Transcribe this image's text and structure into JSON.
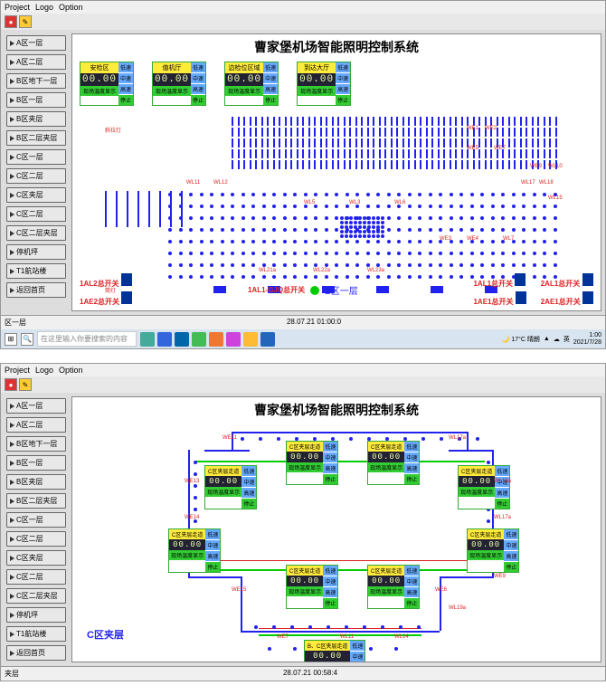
{
  "menu": {
    "project": "Project",
    "logo": "Logo",
    "option": "Option"
  },
  "sys_title": "曹家堡机场智能照明控制系统",
  "nav": [
    "A区一层",
    "A区二层",
    "B区地下一层",
    "B区一层",
    "B区夹层",
    "B区二层夹层",
    "C区一层",
    "C区二层",
    "C区夹层",
    "C区二层",
    "C区二层夹层",
    "停机坪",
    "T1航站楼",
    "返回首页"
  ],
  "top_panels": [
    {
      "title": "安检区",
      "val": "00.00"
    },
    {
      "title": "值机厅",
      "val": "00.00"
    },
    {
      "title": "边检位区域",
      "val": "00.00"
    },
    {
      "title": "到达大厅",
      "val": "00.00"
    }
  ],
  "panel_sub": "现场温度显示",
  "panel_side": [
    "低速",
    "中速",
    "高速",
    "停止"
  ],
  "switches_left": [
    {
      "label": "1AL2总开关"
    },
    {
      "label": "1AE2总开关"
    }
  ],
  "switches_mid": "1AL1-GJQ总开关",
  "switches_right": [
    {
      "label": "1AL1总开关"
    },
    {
      "label": "1AE1总开关"
    },
    {
      "label": "2AL1总开关"
    },
    {
      "label": "2AE1总开关"
    }
  ],
  "zone_b": "B区一层",
  "zone_c": "C区夹层",
  "status_left": "区一层",
  "status_time": "28.07.21 01:00:0",
  "status_time2": "28.07.21 00:58:4",
  "taskbar": {
    "search_ph": "在这里输入你要搜索的内容",
    "weather": "17°C 晴朗",
    "time": "1:00",
    "date": "2021/7/28"
  },
  "c_panels": [
    {
      "title": "C区夹层走道",
      "val": "00.00"
    },
    {
      "title": "C区夹层走道",
      "val": "00.00"
    },
    {
      "title": "C区夹层走道",
      "val": "00.00"
    },
    {
      "title": "C区夹层走道",
      "val": "00.00"
    },
    {
      "title": "C区夹层走道",
      "val": "00.00"
    },
    {
      "title": "C区夹层走道",
      "val": "00.00"
    },
    {
      "title": "C区夹层走道",
      "val": "00.00"
    },
    {
      "title": "C区夹层走道",
      "val": "00.00"
    },
    {
      "title": "B、C区夹层走道",
      "val": "00.00"
    }
  ],
  "colors": {
    "blue": "#2020ee",
    "red": "#dd2222",
    "green": "#33cc33",
    "yellow": "#ffeb3b",
    "lcd_bg": "#222233",
    "lcd_fg": "#eeffaa",
    "grey": "#c0c0c0"
  }
}
